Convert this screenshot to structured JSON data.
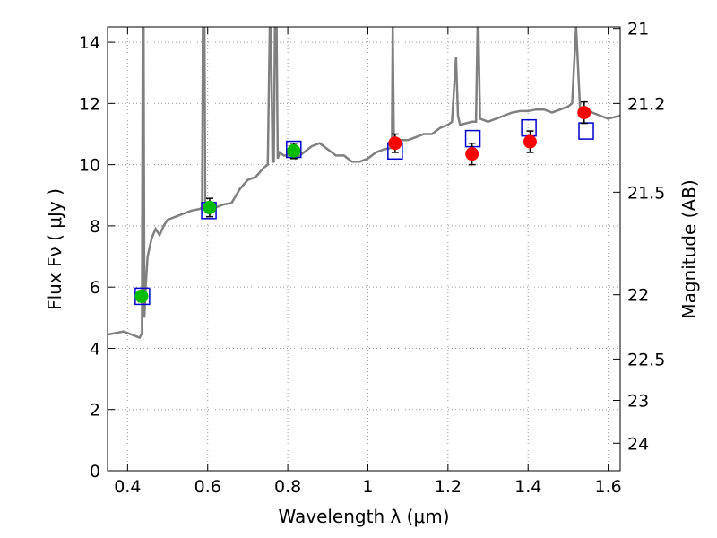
{
  "chart_data": {
    "type": "scatter",
    "xlabel": "Wavelength  λ (μm)",
    "ylabel": "Flux  Fν  ( μJy )",
    "right_label": "Magnitude (AB)",
    "xlim": [
      0.35,
      1.63
    ],
    "ylim": [
      0,
      14.5
    ],
    "grid": true,
    "x_ticks": [
      {
        "value": 0.4,
        "label": "0.4"
      },
      {
        "value": 0.6,
        "label": "0.6"
      },
      {
        "value": 0.8,
        "label": "0.8"
      },
      {
        "value": 1.0,
        "label": "1"
      },
      {
        "value": 1.2,
        "label": "1.2"
      },
      {
        "value": 1.4,
        "label": "1.4"
      },
      {
        "value": 1.6,
        "label": "1.6"
      }
    ],
    "y_ticks": [
      {
        "value": 0,
        "label": "0"
      },
      {
        "value": 2,
        "label": "2"
      },
      {
        "value": 4,
        "label": "4"
      },
      {
        "value": 6,
        "label": "6"
      },
      {
        "value": 8,
        "label": "8"
      },
      {
        "value": 10,
        "label": "10"
      },
      {
        "value": 12,
        "label": "12"
      },
      {
        "value": 14,
        "label": "14"
      }
    ],
    "right_ticks": [
      {
        "flux": 14.45,
        "label": "21"
      },
      {
        "flux": 12.0,
        "label": "21.2"
      },
      {
        "flux": 9.1,
        "label": "21.5"
      },
      {
        "flux": 5.75,
        "label": "22"
      },
      {
        "flux": 3.65,
        "label": "22.5"
      },
      {
        "flux": 2.3,
        "label": "23"
      },
      {
        "flux": 0.9,
        "label": "24"
      }
    ],
    "colors": {
      "model": "#808080",
      "green_points": "#00bb00",
      "red_points": "#ff0000",
      "boxes": "#0000cc",
      "errorbars": "#000000",
      "grid": "#999999"
    },
    "model_spectrum": {
      "name": "SED model",
      "x": [
        0.35,
        0.37,
        0.39,
        0.41,
        0.42,
        0.43,
        0.436,
        0.438,
        0.44,
        0.442,
        0.445,
        0.45,
        0.46,
        0.47,
        0.48,
        0.49,
        0.5,
        0.52,
        0.54,
        0.56,
        0.58,
        0.586,
        0.588,
        0.592,
        0.594,
        0.6,
        0.62,
        0.64,
        0.66,
        0.68,
        0.7,
        0.72,
        0.74,
        0.75,
        0.755,
        0.758,
        0.762,
        0.765,
        0.768,
        0.772,
        0.775,
        0.78,
        0.79,
        0.8,
        0.805,
        0.81,
        0.82,
        0.84,
        0.86,
        0.88,
        0.9,
        0.92,
        0.94,
        0.96,
        0.98,
        1.0,
        1.02,
        1.04,
        1.06,
        1.062,
        1.065,
        1.07,
        1.08,
        1.1,
        1.12,
        1.14,
        1.16,
        1.18,
        1.2,
        1.21,
        1.22,
        1.225,
        1.23,
        1.26,
        1.27,
        1.274,
        1.276,
        1.28,
        1.3,
        1.32,
        1.34,
        1.36,
        1.38,
        1.4,
        1.42,
        1.44,
        1.46,
        1.48,
        1.5,
        1.51,
        1.52,
        1.53,
        1.54,
        1.56,
        1.58,
        1.6,
        1.63
      ],
      "y": [
        4.45,
        4.5,
        4.55,
        4.45,
        4.4,
        4.35,
        4.5,
        14.5,
        14.5,
        5.0,
        6.0,
        7.0,
        7.6,
        7.9,
        7.7,
        8.0,
        8.2,
        8.3,
        8.4,
        8.5,
        8.55,
        8.6,
        14.5,
        14.5,
        8.7,
        8.6,
        8.6,
        8.7,
        8.75,
        9.2,
        9.5,
        9.6,
        9.9,
        10.0,
        14.5,
        14.5,
        10.1,
        10.1,
        14.5,
        14.5,
        10.2,
        10.4,
        10.3,
        10.3,
        10.5,
        10.4,
        10.2,
        10.4,
        10.6,
        10.7,
        10.5,
        10.3,
        10.3,
        10.1,
        10.1,
        10.2,
        10.4,
        10.5,
        10.55,
        14.5,
        10.6,
        10.7,
        10.8,
        10.8,
        10.9,
        11.0,
        11.0,
        11.2,
        11.3,
        11.4,
        13.5,
        11.6,
        11.3,
        11.4,
        11.4,
        14.5,
        14.5,
        11.5,
        11.4,
        11.5,
        11.6,
        11.7,
        11.75,
        11.75,
        11.8,
        11.8,
        11.7,
        11.8,
        11.9,
        12.0,
        14.5,
        11.8,
        11.8,
        11.7,
        11.6,
        11.5,
        11.6
      ]
    },
    "series": [
      {
        "name": "green points",
        "marker": "circle",
        "x": [
          0.435,
          0.605,
          0.815
        ],
        "y": [
          5.7,
          8.6,
          10.45
        ],
        "err": [
          0.18,
          0.3,
          0.25
        ]
      },
      {
        "name": "red points",
        "marker": "circle",
        "x": [
          1.068,
          1.26,
          1.405,
          1.54
        ],
        "y": [
          10.7,
          10.35,
          10.75,
          11.7
        ],
        "err": [
          0.3,
          0.35,
          0.35,
          0.35
        ]
      },
      {
        "name": "model boxes",
        "marker": "square",
        "x": [
          0.437,
          0.603,
          0.815,
          1.068,
          1.262,
          1.402,
          1.545
        ],
        "y": [
          5.7,
          8.5,
          10.5,
          10.45,
          10.85,
          11.2,
          11.1
        ]
      }
    ]
  }
}
